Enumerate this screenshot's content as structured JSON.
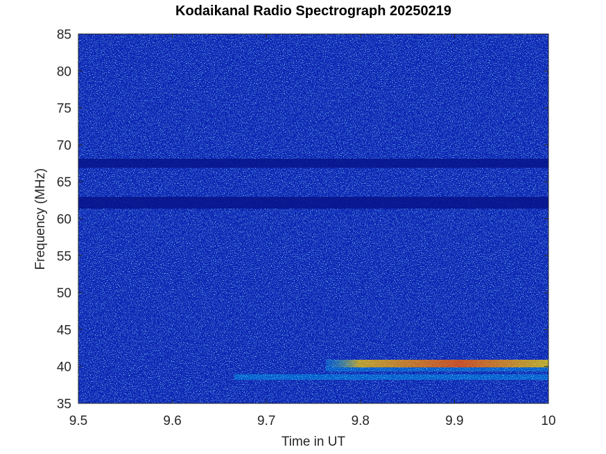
{
  "chart_data": {
    "type": "spectrogram",
    "title": "Kodaikanal Radio Spectrograph  20250219",
    "xlabel": "Time in UT",
    "ylabel": "Frequency (MHz)",
    "xlim": [
      9.5,
      10
    ],
    "xticks": [
      9.5,
      9.6,
      9.7,
      9.8,
      9.9,
      10
    ],
    "ylim": [
      35,
      85
    ],
    "yticks": [
      35,
      40,
      45,
      50,
      55,
      60,
      65,
      70,
      75,
      80,
      85
    ]
  }
}
